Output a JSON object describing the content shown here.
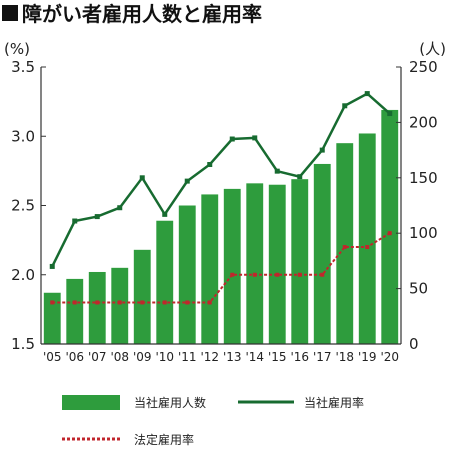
{
  "title": "障がい者雇用人数と雇用率",
  "colors": {
    "bar": "#2e9c3d",
    "line": "#176b30",
    "legal": "#c0262c",
    "axis": "#333333",
    "title_block": "#111111"
  },
  "chart_data": {
    "type": "bar",
    "title": "障がい者雇用人数と雇用率",
    "categories": [
      "'05",
      "'06",
      "'07",
      "'08",
      "'09",
      "'10",
      "'11",
      "'12",
      "'13",
      "'14",
      "'15",
      "'16",
      "'17",
      "'18",
      "'19",
      "'20"
    ],
    "left_axis": {
      "unit_label": "(%)",
      "ylim": [
        1.5,
        3.5
      ],
      "ticks": [
        1.5,
        2.0,
        2.5,
        3.0,
        3.5
      ],
      "tick_labels": [
        "1.5",
        "2.0",
        "2.5",
        "3.0",
        "3.5"
      ]
    },
    "right_axis": {
      "unit_label": "(人)",
      "ylim": [
        0,
        250
      ],
      "ticks": [
        0,
        50,
        100,
        150,
        200,
        250
      ],
      "tick_labels": [
        "0",
        "50",
        "100",
        "150",
        "200",
        "250"
      ]
    },
    "series": [
      {
        "name": "当社雇用人数",
        "type": "bar",
        "axis": "left",
        "values": [
          1.87,
          1.97,
          2.02,
          2.05,
          2.18,
          2.39,
          2.5,
          2.58,
          2.62,
          2.66,
          2.65,
          2.69,
          2.8,
          2.95,
          3.02,
          3.19
        ]
      },
      {
        "name": "当社雇用率",
        "type": "line",
        "axis": "right",
        "values": [
          70,
          111,
          115,
          123,
          150,
          117,
          147,
          162,
          185,
          186,
          156,
          151,
          175,
          215,
          226,
          208
        ]
      },
      {
        "name": "法定雇用率",
        "type": "line-dashed",
        "axis": "left",
        "values": [
          1.8,
          1.8,
          1.8,
          1.8,
          1.8,
          1.8,
          1.8,
          1.8,
          2.0,
          2.0,
          2.0,
          2.0,
          2.0,
          2.2,
          2.2,
          2.3
        ]
      }
    ],
    "legend": {
      "placement": "bottom",
      "items": [
        "当社雇用人数",
        "当社雇用率",
        "法定雇用率"
      ]
    }
  }
}
